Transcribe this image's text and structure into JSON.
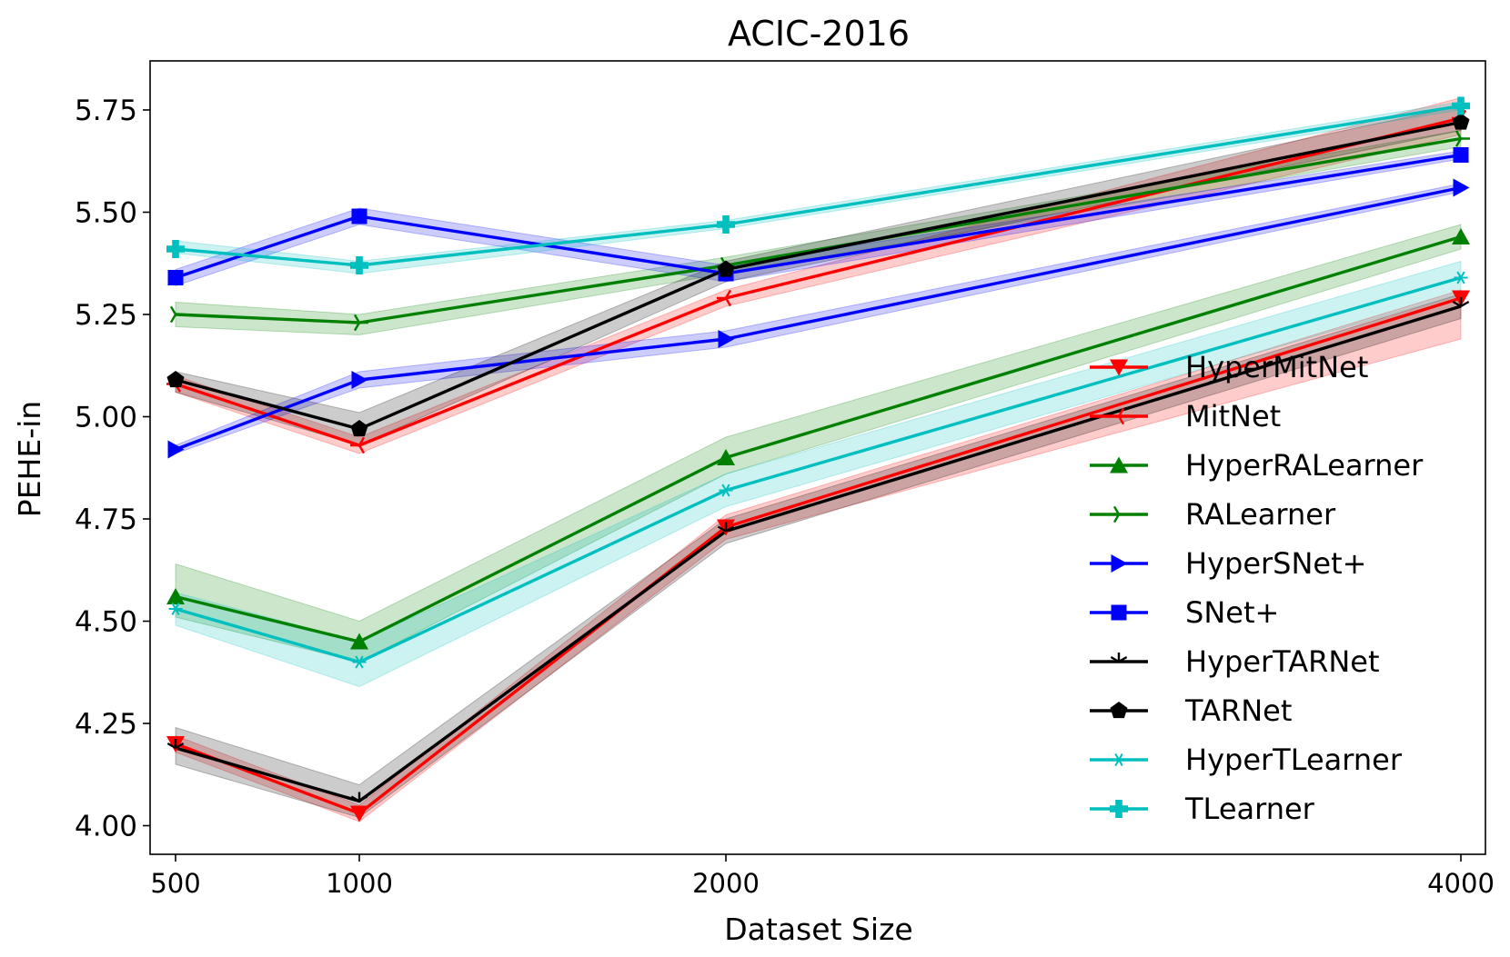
{
  "chart_data": {
    "type": "line",
    "title": "ACIC-2016",
    "xlabel": "Dataset Size",
    "ylabel": "PEHE-in",
    "x": [
      500,
      1000,
      2000,
      4000
    ],
    "xticks": [
      "500",
      "1000",
      "2000",
      "4000"
    ],
    "ylim": [
      3.93,
      5.87
    ],
    "yticks": [
      "4.00",
      "4.25",
      "4.50",
      "4.75",
      "5.00",
      "5.25",
      "5.50",
      "5.75"
    ],
    "ytick_values": [
      4.0,
      4.25,
      4.5,
      4.75,
      5.0,
      5.25,
      5.5,
      5.75
    ],
    "grid": false,
    "legend_position": "lower-right",
    "series": [
      {
        "name": "HyperMitNet",
        "color": "#ff0000",
        "marker": "triangle-down",
        "values": [
          4.2,
          4.03,
          4.73,
          5.29
        ],
        "lower": [
          4.18,
          4.01,
          4.7,
          5.19
        ],
        "upper": [
          4.22,
          4.05,
          4.76,
          5.31
        ]
      },
      {
        "name": "MitNet",
        "color": "#ff0000",
        "marker": "tri-left",
        "values": [
          5.08,
          4.93,
          5.29,
          5.73
        ],
        "lower": [
          5.06,
          4.91,
          5.27,
          5.69
        ],
        "upper": [
          5.1,
          4.95,
          5.31,
          5.78
        ]
      },
      {
        "name": "HyperRALearner",
        "color": "#008000",
        "marker": "triangle-up",
        "values": [
          4.56,
          4.45,
          4.9,
          5.44
        ],
        "lower": [
          4.51,
          4.4,
          4.86,
          5.41
        ],
        "upper": [
          4.64,
          4.5,
          4.95,
          5.47
        ]
      },
      {
        "name": "RALearner",
        "color": "#008000",
        "marker": "tri-right",
        "values": [
          5.25,
          5.23,
          5.37,
          5.68
        ],
        "lower": [
          5.22,
          5.2,
          5.35,
          5.66
        ],
        "upper": [
          5.28,
          5.25,
          5.39,
          5.7
        ]
      },
      {
        "name": "HyperSNet+",
        "color": "#0000ff",
        "marker": "triangle-right",
        "values": [
          4.92,
          5.09,
          5.19,
          5.56
        ],
        "lower": [
          4.91,
          5.07,
          5.17,
          5.55
        ],
        "upper": [
          4.93,
          5.11,
          5.21,
          5.57
        ]
      },
      {
        "name": "SNet+",
        "color": "#0000ff",
        "marker": "square",
        "values": [
          5.34,
          5.49,
          5.35,
          5.64
        ],
        "lower": [
          5.32,
          5.47,
          5.33,
          5.63
        ],
        "upper": [
          5.36,
          5.51,
          5.37,
          5.65
        ]
      },
      {
        "name": "HyperTARNet",
        "color": "#000000",
        "marker": "tri-down",
        "values": [
          4.19,
          4.06,
          4.72,
          5.27
        ],
        "lower": [
          4.15,
          4.02,
          4.69,
          5.24
        ],
        "upper": [
          4.24,
          4.1,
          4.75,
          5.3
        ]
      },
      {
        "name": "TARNet",
        "color": "#000000",
        "marker": "pentagon",
        "values": [
          5.09,
          4.97,
          5.36,
          5.72
        ],
        "lower": [
          5.06,
          4.93,
          5.33,
          5.7
        ],
        "upper": [
          5.11,
          5.01,
          5.38,
          5.76
        ]
      },
      {
        "name": "HyperTLearner",
        "color": "#00bfbf",
        "marker": "thin-star",
        "values": [
          4.53,
          4.4,
          4.82,
          5.34
        ],
        "lower": [
          4.49,
          4.34,
          4.78,
          5.3
        ],
        "upper": [
          4.57,
          4.45,
          4.86,
          5.38
        ]
      },
      {
        "name": "TLearner",
        "color": "#00bfbf",
        "marker": "plus-filled",
        "values": [
          5.41,
          5.37,
          5.47,
          5.76
        ],
        "lower": [
          5.4,
          5.35,
          5.46,
          5.75
        ],
        "upper": [
          5.43,
          5.38,
          5.48,
          5.77
        ]
      }
    ]
  }
}
